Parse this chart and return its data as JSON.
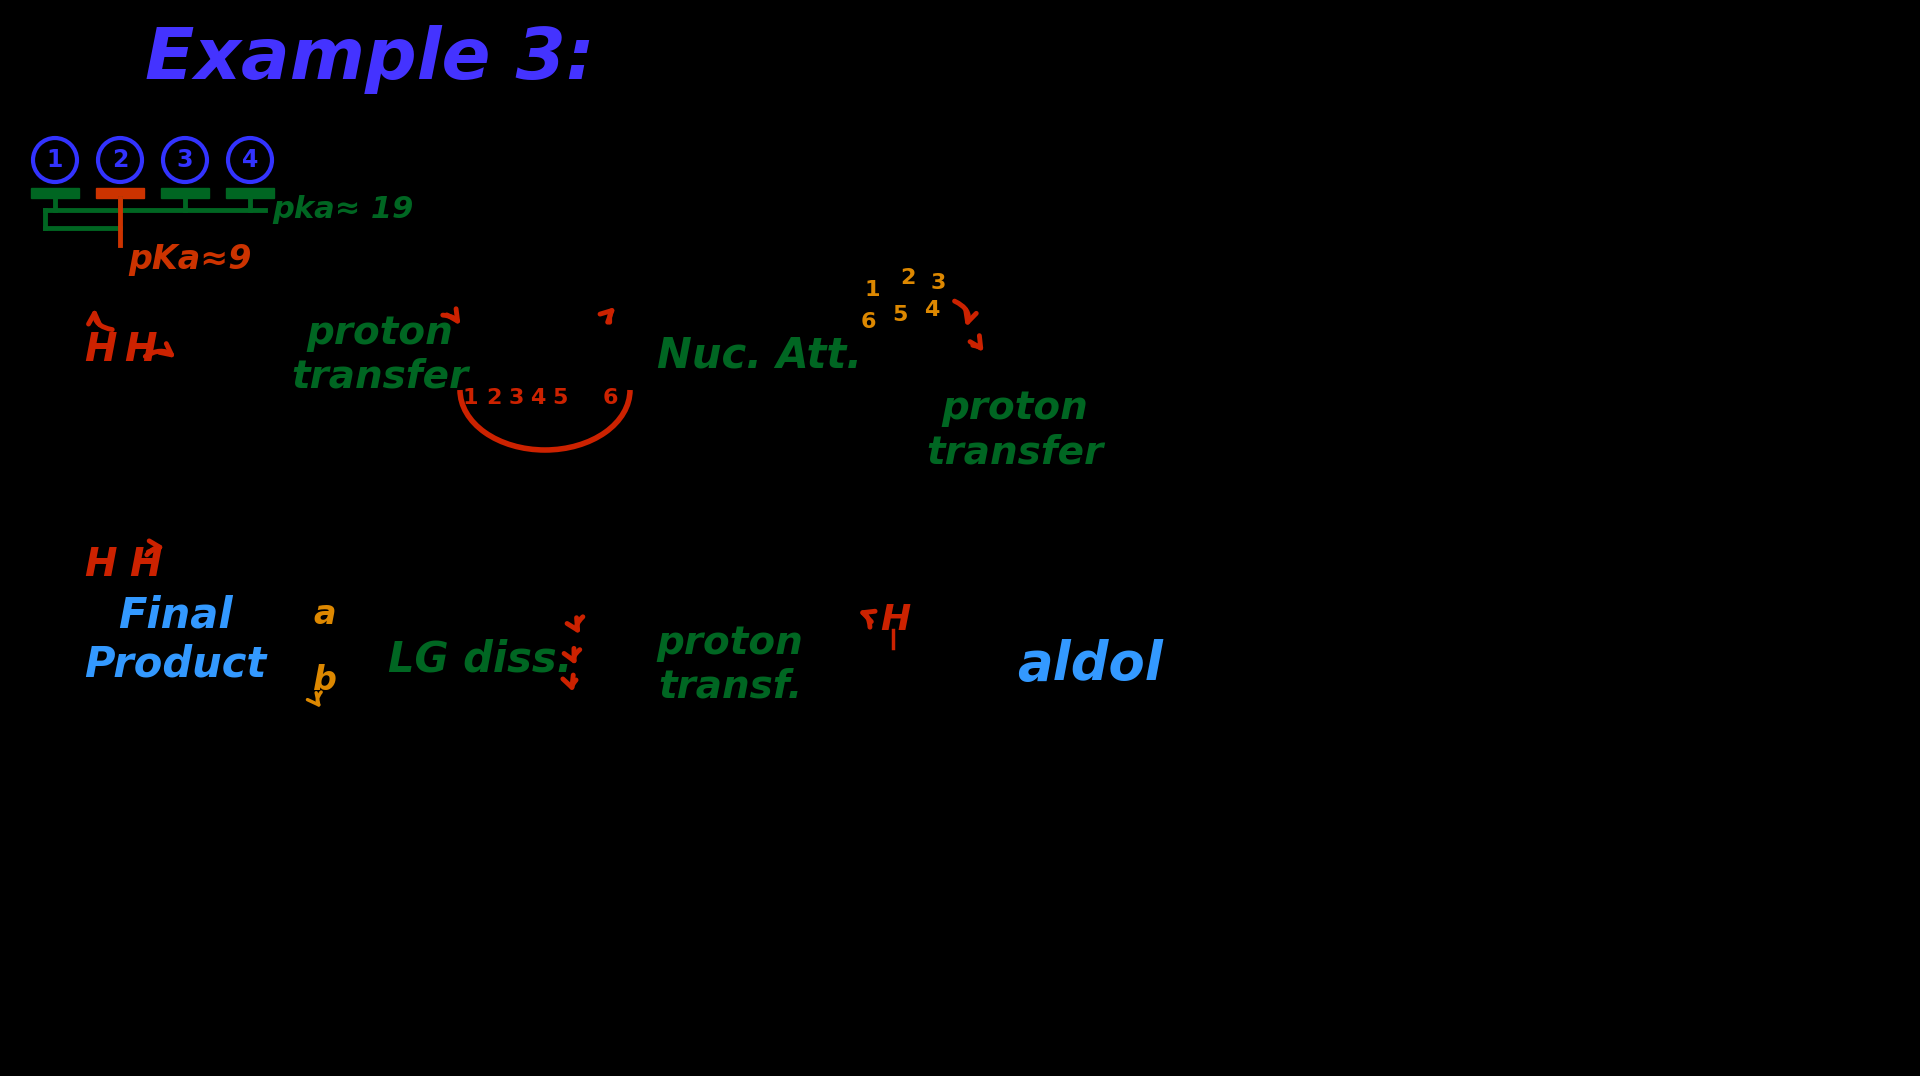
{
  "bg_color": "#000000",
  "title": "Example 3:",
  "title_color": "#4433ff",
  "title_fontsize": 52,
  "pka19_text": "pka≈ 19",
  "pka19_color": "#006622",
  "pka9_text": "pKa≈9",
  "pka9_color": "#cc3300",
  "green_color": "#006622",
  "red_color": "#cc2200",
  "orange_color": "#dd8800",
  "cyan_color": "#3399ff",
  "proton_transfer_text": "proton\ntransfer",
  "nuc_att_text": "Nuc. Att.",
  "lg_diss_text": "LG diss.",
  "final_product_text": "Final\nProduct",
  "aldol_text": "aldol",
  "proton_transf_text": "proton\ntransf.",
  "proton_transfer2_text": "proton\ntransfer"
}
